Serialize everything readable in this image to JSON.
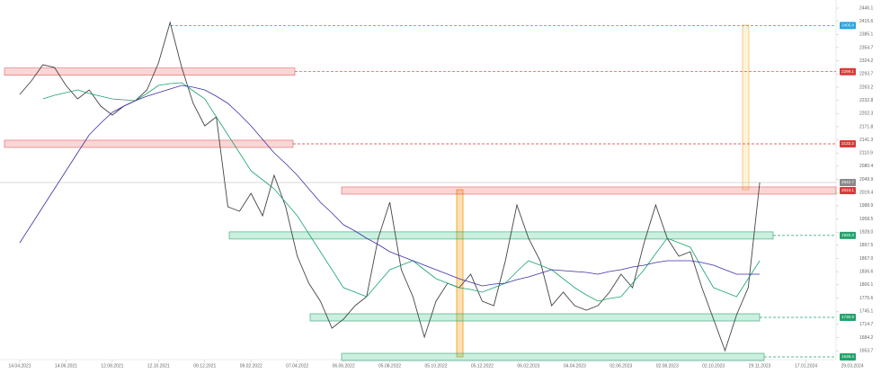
{
  "chart_data": {
    "type": "line",
    "categories": [
      "14.04.2021",
      null,
      null,
      null,
      "14.06.2021",
      null,
      null,
      null,
      "12.08.2021",
      null,
      null,
      null,
      "12.10.2021",
      null,
      null,
      null,
      "09.12.2021",
      null,
      null,
      null,
      "09.02.2022",
      null,
      null,
      null,
      "07.04.2022",
      null,
      null,
      null,
      "06.06.2022",
      null,
      null,
      null,
      "05.08.2022",
      null,
      null,
      null,
      "05.10.2022",
      null,
      null,
      null,
      "05.12.2022",
      null,
      null,
      null,
      "06.02.2023",
      null,
      null,
      null,
      "04.04.2023",
      null,
      null,
      null,
      "02.06.2023",
      null,
      null,
      null,
      "02.08.2023",
      null,
      null,
      null,
      "02.10.2023",
      null,
      null,
      null,
      "29.11.2023",
      null,
      null,
      null,
      "17.01.2024",
      null,
      null,
      null,
      "29.03.2024"
    ],
    "series": [
      {
        "color": "#444444",
        "values": [
          2246.5,
          2277.7,
          2315.1,
          2308.9,
          2267.3,
          2236.1,
          2256.9,
          2219.5,
          2198.7,
          2219.5,
          2232.0,
          2256.9,
          2319.3,
          2412.8,
          2308.9,
          2225.7,
          2173.8,
          2194.5,
          1986.6,
          1976.2,
          2017.8,
          1965.9,
          2059.4,
          1986.6,
          1872.3,
          1809.9,
          1768.3,
          1706.0,
          1726.8,
          1758.0,
          1778.7,
          1913.9,
          1997.0,
          1841.1,
          1778.7,
          1685.2,
          1768.3,
          1809.9,
          1799.5,
          1830.7,
          1768.3,
          1758.0,
          1861.9,
          1990.8,
          1913.9,
          1861.9,
          1758.0,
          1789.1,
          1758.0,
          1747.6,
          1758.0,
          1789.1,
          1830.7,
          1799.5,
          1903.5,
          1990.8,
          1913.9,
          1872.3,
          1882.7,
          1799.5,
          1726.8,
          1654.0,
          1737.2,
          1799.5,
          2042.7,
          null,
          null,
          null,
          null,
          null,
          null,
          null,
          null
        ]
      },
      {
        "color": "#1aa36b",
        "values": [
          null,
          null,
          2236.1,
          2244.4,
          2250.7,
          2256.9,
          2248.6,
          2242.4,
          2236.1,
          2234.0,
          2232.0,
          2248.6,
          2267.3,
          2271.5,
          2273.5,
          2254.8,
          2236.1,
          2194.5,
          2153.0,
          2111.4,
          2069.8,
          2049.0,
          2028.2,
          1997.0,
          1965.9,
          1924.3,
          1882.7,
          1841.1,
          1799.5,
          1789.1,
          1778.7,
          1809.9,
          1841.1,
          1851.5,
          1861.9,
          1841.1,
          1820.3,
          1809.9,
          1799.5,
          1795.4,
          1789.1,
          1799.5,
          1809.9,
          1837.0,
          1861.9,
          1851.5,
          1841.1,
          1820.3,
          1799.5,
          1782.9,
          1768.3,
          1774.6,
          1778.7,
          1809.9,
          1841.1,
          1878.5,
          1913.9,
          1903.5,
          1893.1,
          1845.3,
          1799.5,
          1789.1,
          1778.7,
          1820.3,
          1861.9,
          null,
          null,
          null,
          null,
          null,
          null,
          null,
          null
        ]
      },
      {
        "color": "#3b2fa8",
        "values": [
          1903.5,
          1945.1,
          1986.6,
          2028.2,
          2069.8,
          2111.4,
          2153.0,
          2180.0,
          2204.9,
          2219.5,
          2232.0,
          2242.4,
          2250.7,
          2259.0,
          2267.3,
          2263.2,
          2256.9,
          2242.4,
          2225.7,
          2200.8,
          2173.8,
          2142.6,
          2111.4,
          2086.4,
          2059.4,
          2028.2,
          1997.0,
          1972.1,
          1945.1,
          1930.5,
          1913.9,
          1899.3,
          1882.7,
          1872.3,
          1861.9,
          1851.5,
          1841.1,
          1830.7,
          1820.3,
          1812.0,
          1803.7,
          1807.9,
          1809.9,
          1818.2,
          1824.5,
          1832.8,
          1841.1,
          1839.0,
          1837.0,
          1834.9,
          1830.7,
          1837.0,
          1841.1,
          1847.4,
          1851.5,
          1857.7,
          1861.9,
          1861.9,
          1861.9,
          1857.7,
          1851.5,
          1841.1,
          1830.7,
          1830.7,
          1830.7,
          null,
          null,
          null,
          null,
          null,
          null,
          null,
          null
        ]
      }
    ],
    "ylim": [
      1633.2,
      2464.8
    ],
    "yticks": [
      2446.1,
      2415.6,
      2385.1,
      2354.7,
      2324.2,
      2293.7,
      2263.2,
      2232.8,
      2202.3,
      2171.8,
      2141.3,
      2110.9,
      2080.4,
      2049.9,
      2019.4,
      1988.9,
      1958.5,
      {
        "value": 1928,
        "label": "1928.0"
      },
      1897.5,
      {
        "value": 1867,
        "label": "1867.0"
      },
      1836.6,
      1806.1,
      1775.6,
      1745.1,
      1714.7,
      1684.2,
      1653.7
    ],
    "grid": false,
    "price_tags": [
      {
        "value": 2405.8,
        "color": "#29a3e0"
      },
      {
        "value": 2299.1,
        "color": "#d83b3b"
      },
      {
        "value": 2132.2,
        "color": "#d83b3b"
      },
      {
        "value": 2042.7,
        "color": "#8a8a8a"
      },
      {
        "value": 2024.1,
        "color": "#d83b3b"
      },
      {
        "value": 1920.3,
        "color": "#22a36b"
      },
      {
        "value": 1730.9,
        "color": "#22a36b"
      },
      {
        "value": 1639.4,
        "color": "#22a36b"
      }
    ]
  }
}
